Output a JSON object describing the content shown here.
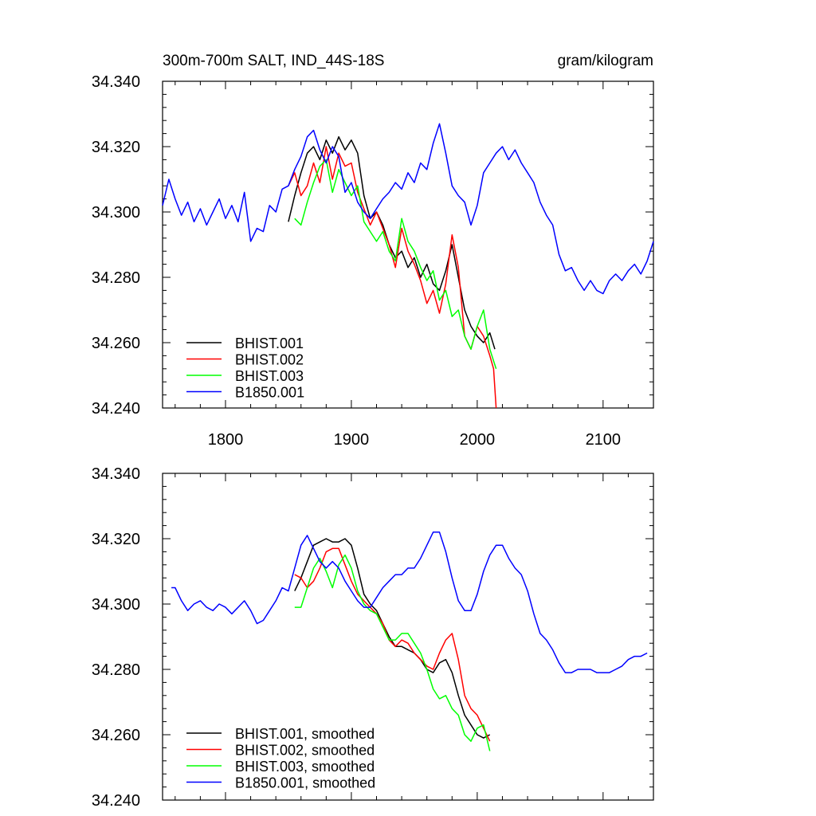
{
  "page": {
    "title_left": "300m-700m SALT, IND_44S-18S",
    "title_right": "gram/kilogram"
  },
  "chart_data": [
    {
      "type": "line",
      "title": "300m-700m SALT, IND_44S-18S",
      "units": "gram/kilogram",
      "xlim": [
        1750,
        2140
      ],
      "ylim": [
        34.24,
        34.34
      ],
      "x_ticks": [
        1800,
        1900,
        2000,
        2100
      ],
      "x_tick_labels": [
        "1800",
        "1900",
        "2000",
        "2100"
      ],
      "y_ticks": [
        34.24,
        34.26,
        34.28,
        34.3,
        34.32,
        34.34
      ],
      "y_tick_labels": [
        "34.240",
        "34.260",
        "34.280",
        "34.300",
        "34.320",
        "34.340"
      ],
      "grid": false,
      "legend_position": "bottom-left",
      "series": [
        {
          "name": "BHIST.001",
          "color": "#000000",
          "x": [
            1850,
            1855,
            1860,
            1865,
            1870,
            1875,
            1880,
            1885,
            1890,
            1895,
            1900,
            1905,
            1910,
            1915,
            1920,
            1925,
            1930,
            1935,
            1940,
            1945,
            1950,
            1955,
            1960,
            1965,
            1970,
            1975,
            1980,
            1985,
            1990,
            1995,
            2000,
            2005,
            2010,
            2014
          ],
          "y": [
            34.297,
            34.305,
            34.312,
            34.318,
            34.32,
            34.316,
            34.322,
            34.318,
            34.323,
            34.319,
            34.322,
            34.318,
            34.305,
            34.298,
            34.3,
            34.296,
            34.29,
            34.286,
            34.288,
            34.283,
            34.286,
            34.28,
            34.284,
            34.278,
            34.276,
            34.282,
            34.29,
            34.28,
            34.27,
            34.265,
            34.262,
            34.26,
            34.263,
            34.258
          ]
        },
        {
          "name": "BHIST.002",
          "color": "#ff0000",
          "x": [
            1850,
            1855,
            1860,
            1865,
            1870,
            1875,
            1880,
            1885,
            1890,
            1895,
            1900,
            1905,
            1910,
            1915,
            1920,
            1925,
            1930,
            1935,
            1940,
            1945,
            1950,
            1955,
            1960,
            1965,
            1970,
            1975,
            1980,
            1985,
            1990,
            1995,
            2000,
            2005,
            2010,
            2013,
            2015
          ],
          "y": [
            34.308,
            34.312,
            34.305,
            34.308,
            34.315,
            34.309,
            34.32,
            34.31,
            34.318,
            34.314,
            34.315,
            34.306,
            34.301,
            34.296,
            34.3,
            34.295,
            34.29,
            34.283,
            34.295,
            34.288,
            34.284,
            34.279,
            34.272,
            34.276,
            34.269,
            34.278,
            34.293,
            34.283,
            34.262,
            34.258,
            34.265,
            34.262,
            34.256,
            34.252,
            34.24
          ]
        },
        {
          "name": "BHIST.003",
          "color": "#00ff00",
          "x": [
            1855,
            1860,
            1865,
            1870,
            1875,
            1880,
            1885,
            1890,
            1895,
            1900,
            1905,
            1910,
            1915,
            1920,
            1925,
            1930,
            1935,
            1940,
            1945,
            1950,
            1955,
            1960,
            1965,
            1970,
            1975,
            1980,
            1985,
            1990,
            1995,
            2000,
            2005,
            2010,
            2015
          ],
          "y": [
            34.298,
            34.296,
            34.303,
            34.309,
            34.314,
            34.316,
            34.306,
            34.313,
            34.309,
            34.305,
            34.308,
            34.297,
            34.294,
            34.291,
            34.294,
            34.288,
            34.285,
            34.298,
            34.291,
            34.288,
            34.283,
            34.279,
            34.282,
            34.273,
            34.276,
            34.268,
            34.27,
            34.262,
            34.258,
            34.265,
            34.27,
            34.258,
            34.252
          ]
        },
        {
          "name": "B1850.001",
          "color": "#0000ff",
          "x": [
            1750,
            1755,
            1760,
            1765,
            1770,
            1775,
            1780,
            1785,
            1790,
            1795,
            1800,
            1805,
            1810,
            1815,
            1820,
            1825,
            1830,
            1835,
            1840,
            1845,
            1850,
            1855,
            1860,
            1865,
            1870,
            1875,
            1880,
            1885,
            1890,
            1895,
            1900,
            1905,
            1910,
            1915,
            1920,
            1925,
            1930,
            1935,
            1940,
            1945,
            1950,
            1955,
            1960,
            1965,
            1970,
            1975,
            1980,
            1985,
            1990,
            1995,
            2000,
            2005,
            2010,
            2015,
            2020,
            2025,
            2030,
            2035,
            2040,
            2045,
            2050,
            2055,
            2060,
            2065,
            2070,
            2075,
            2080,
            2085,
            2090,
            2095,
            2100,
            2105,
            2110,
            2115,
            2120,
            2125,
            2130,
            2135,
            2140
          ],
          "y": [
            34.302,
            34.31,
            34.304,
            34.299,
            34.303,
            34.297,
            34.301,
            34.296,
            34.3,
            34.304,
            34.298,
            34.302,
            34.297,
            34.306,
            34.291,
            34.295,
            34.294,
            34.302,
            34.3,
            34.307,
            34.308,
            34.313,
            34.317,
            34.323,
            34.325,
            34.319,
            34.315,
            34.32,
            34.317,
            34.306,
            34.309,
            34.303,
            34.3,
            34.298,
            34.301,
            34.304,
            34.306,
            34.309,
            34.307,
            34.312,
            34.309,
            34.315,
            34.313,
            34.321,
            34.327,
            34.318,
            34.308,
            34.305,
            34.303,
            34.296,
            34.302,
            34.312,
            34.315,
            34.318,
            34.32,
            34.316,
            34.319,
            34.315,
            34.312,
            34.309,
            34.303,
            34.299,
            34.296,
            34.287,
            34.282,
            34.283,
            34.279,
            34.276,
            34.279,
            34.276,
            34.275,
            34.279,
            34.281,
            34.279,
            34.282,
            34.284,
            34.281,
            34.285,
            34.291
          ]
        }
      ]
    },
    {
      "type": "line",
      "xlim": [
        1750,
        2140
      ],
      "ylim": [
        34.24,
        34.34
      ],
      "x_ticks": [
        1800,
        1900,
        2000,
        2100
      ],
      "y_ticks": [
        34.24,
        34.26,
        34.28,
        34.3,
        34.32,
        34.34
      ],
      "y_tick_labels": [
        "34.240",
        "34.260",
        "34.280",
        "34.300",
        "34.320",
        "34.340"
      ],
      "grid": false,
      "legend_position": "bottom-left",
      "series": [
        {
          "name": "BHIST.001, smoothed",
          "color": "#000000",
          "x": [
            1855,
            1860,
            1865,
            1870,
            1875,
            1880,
            1885,
            1890,
            1895,
            1900,
            1905,
            1910,
            1915,
            1920,
            1925,
            1930,
            1935,
            1940,
            1945,
            1950,
            1955,
            1960,
            1965,
            1970,
            1975,
            1980,
            1985,
            1990,
            1995,
            2000,
            2005,
            2010
          ],
          "y": [
            34.304,
            34.308,
            34.313,
            34.318,
            34.319,
            34.32,
            34.319,
            34.319,
            34.32,
            34.318,
            34.311,
            34.303,
            34.3,
            34.298,
            34.294,
            34.29,
            34.287,
            34.287,
            34.286,
            34.285,
            34.283,
            34.28,
            34.279,
            34.282,
            34.283,
            34.279,
            34.272,
            34.266,
            34.263,
            34.26,
            34.259,
            34.26
          ]
        },
        {
          "name": "BHIST.002, smoothed",
          "color": "#ff0000",
          "x": [
            1855,
            1860,
            1865,
            1870,
            1875,
            1880,
            1885,
            1890,
            1895,
            1900,
            1905,
            1910,
            1915,
            1920,
            1925,
            1930,
            1935,
            1940,
            1945,
            1950,
            1955,
            1960,
            1965,
            1970,
            1975,
            1980,
            1985,
            1990,
            1995,
            2000,
            2005,
            2010
          ],
          "y": [
            34.309,
            34.308,
            34.305,
            34.307,
            34.311,
            34.316,
            34.317,
            34.317,
            34.312,
            34.307,
            34.303,
            34.301,
            34.299,
            34.297,
            34.294,
            34.289,
            34.287,
            34.289,
            34.288,
            34.285,
            34.283,
            34.281,
            34.28,
            34.285,
            34.289,
            34.291,
            34.283,
            34.272,
            34.268,
            34.266,
            34.262,
            34.258
          ]
        },
        {
          "name": "BHIST.003, smoothed",
          "color": "#00ff00",
          "x": [
            1855,
            1860,
            1865,
            1870,
            1875,
            1880,
            1885,
            1890,
            1895,
            1900,
            1905,
            1910,
            1915,
            1920,
            1925,
            1930,
            1935,
            1940,
            1945,
            1950,
            1955,
            1960,
            1965,
            1970,
            1975,
            1980,
            1985,
            1990,
            1995,
            2000,
            2005,
            2010
          ],
          "y": [
            34.299,
            34.299,
            34.305,
            34.311,
            34.314,
            34.31,
            34.305,
            34.312,
            34.315,
            34.311,
            34.304,
            34.3,
            34.298,
            34.297,
            34.293,
            34.289,
            34.289,
            34.291,
            34.291,
            34.288,
            34.285,
            34.28,
            34.274,
            34.271,
            34.272,
            34.268,
            34.266,
            34.26,
            34.258,
            34.262,
            34.263,
            34.255
          ]
        },
        {
          "name": "B1850.001, smoothed",
          "color": "#0000ff",
          "x": [
            1757,
            1760,
            1765,
            1770,
            1775,
            1780,
            1785,
            1790,
            1795,
            1800,
            1805,
            1810,
            1815,
            1820,
            1825,
            1830,
            1835,
            1840,
            1845,
            1850,
            1855,
            1860,
            1865,
            1870,
            1875,
            1880,
            1885,
            1890,
            1895,
            1900,
            1905,
            1910,
            1915,
            1920,
            1925,
            1930,
            1935,
            1940,
            1945,
            1950,
            1955,
            1960,
            1965,
            1970,
            1975,
            1980,
            1985,
            1990,
            1995,
            2000,
            2005,
            2010,
            2015,
            2020,
            2025,
            2030,
            2035,
            2040,
            2045,
            2050,
            2055,
            2060,
            2065,
            2070,
            2075,
            2080,
            2085,
            2090,
            2095,
            2100,
            2105,
            2110,
            2115,
            2120,
            2125,
            2130,
            2135
          ],
          "y": [
            34.305,
            34.305,
            34.301,
            34.298,
            34.3,
            34.301,
            34.299,
            34.298,
            34.3,
            34.299,
            34.297,
            34.299,
            34.301,
            34.298,
            34.294,
            34.295,
            34.298,
            34.301,
            34.305,
            34.304,
            34.311,
            34.318,
            34.321,
            34.317,
            34.313,
            34.311,
            34.313,
            34.311,
            34.307,
            34.304,
            34.301,
            34.299,
            34.299,
            34.302,
            34.305,
            34.307,
            34.309,
            34.309,
            34.311,
            34.311,
            34.314,
            34.318,
            34.322,
            34.322,
            34.316,
            34.308,
            34.301,
            34.298,
            34.298,
            34.303,
            34.31,
            34.315,
            34.318,
            34.318,
            34.314,
            34.311,
            34.309,
            34.304,
            34.297,
            34.291,
            34.289,
            34.286,
            34.282,
            34.279,
            34.279,
            34.28,
            34.28,
            34.28,
            34.279,
            34.279,
            34.279,
            34.28,
            34.281,
            34.283,
            34.284,
            34.284,
            34.285
          ]
        }
      ]
    }
  ]
}
